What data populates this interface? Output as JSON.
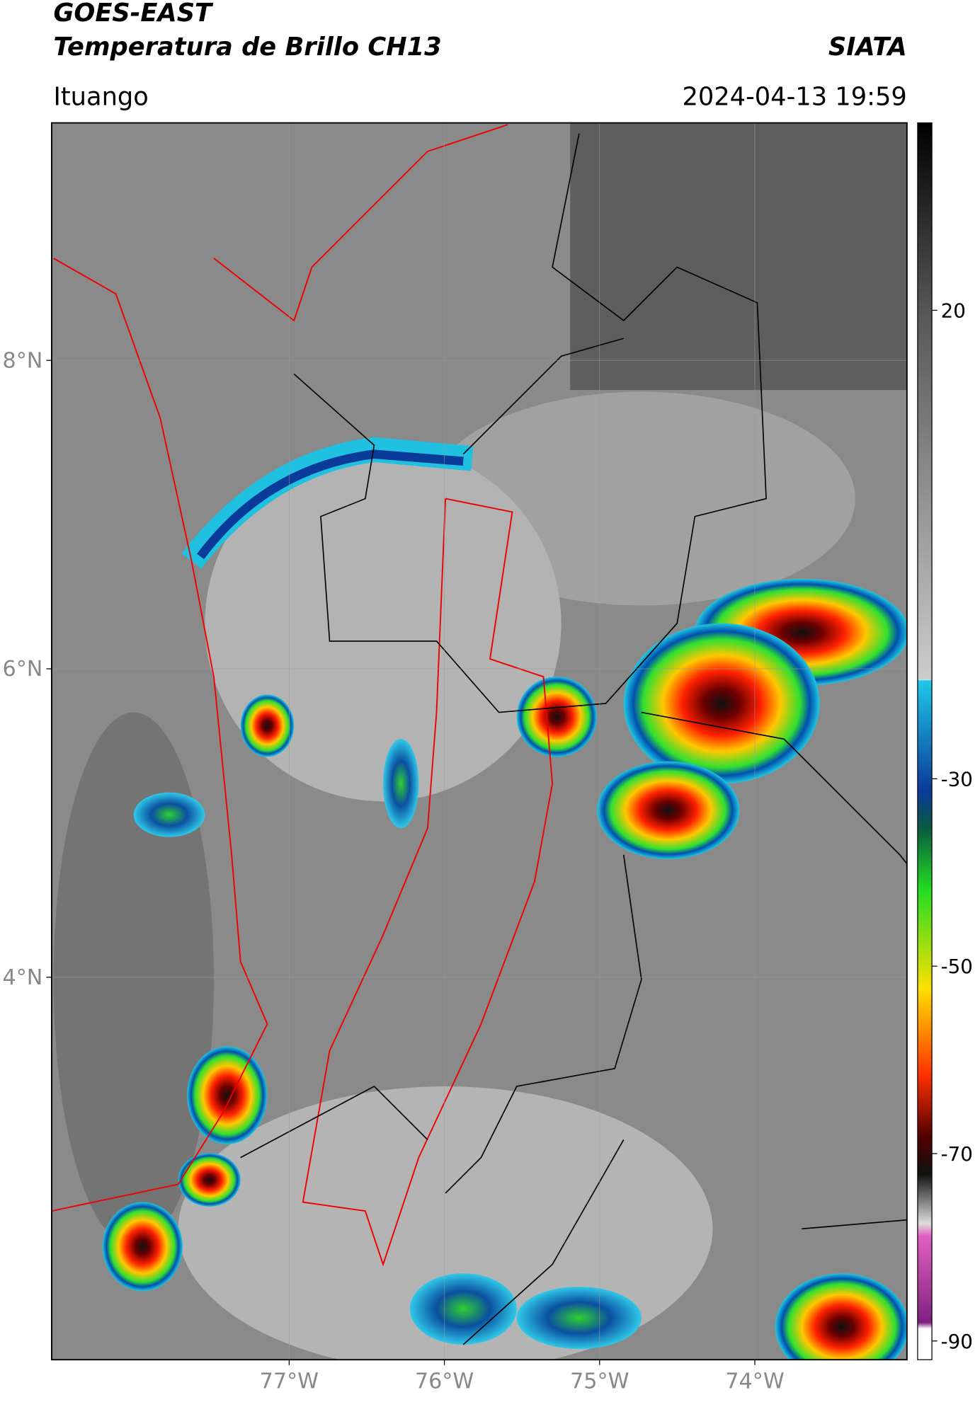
{
  "header": {
    "title_line1": "GOES-EAST",
    "title_line2": "Temperatura de Brillo CH13",
    "agency": "SIATA",
    "region": "Ituango",
    "datetime": "2024-04-13 19:59"
  },
  "map": {
    "lon_range": [
      -78.53,
      -73.02
    ],
    "lat_range": [
      1.52,
      9.54
    ],
    "lonticks": [
      {
        "value": -77,
        "label": "77°W"
      },
      {
        "value": -76,
        "label": "76°W"
      },
      {
        "value": -75,
        "label": "75°W"
      },
      {
        "value": -74,
        "label": "74°W"
      }
    ],
    "latticks": [
      {
        "value": 8,
        "label": "8°N"
      },
      {
        "value": 6,
        "label": "6°N"
      },
      {
        "value": 4,
        "label": "4°N"
      }
    ],
    "grid": true
  },
  "colorbar": {
    "range": [
      -92,
      40
    ],
    "ticks": [
      20,
      -30,
      -50,
      -70,
      -90
    ]
  }
}
